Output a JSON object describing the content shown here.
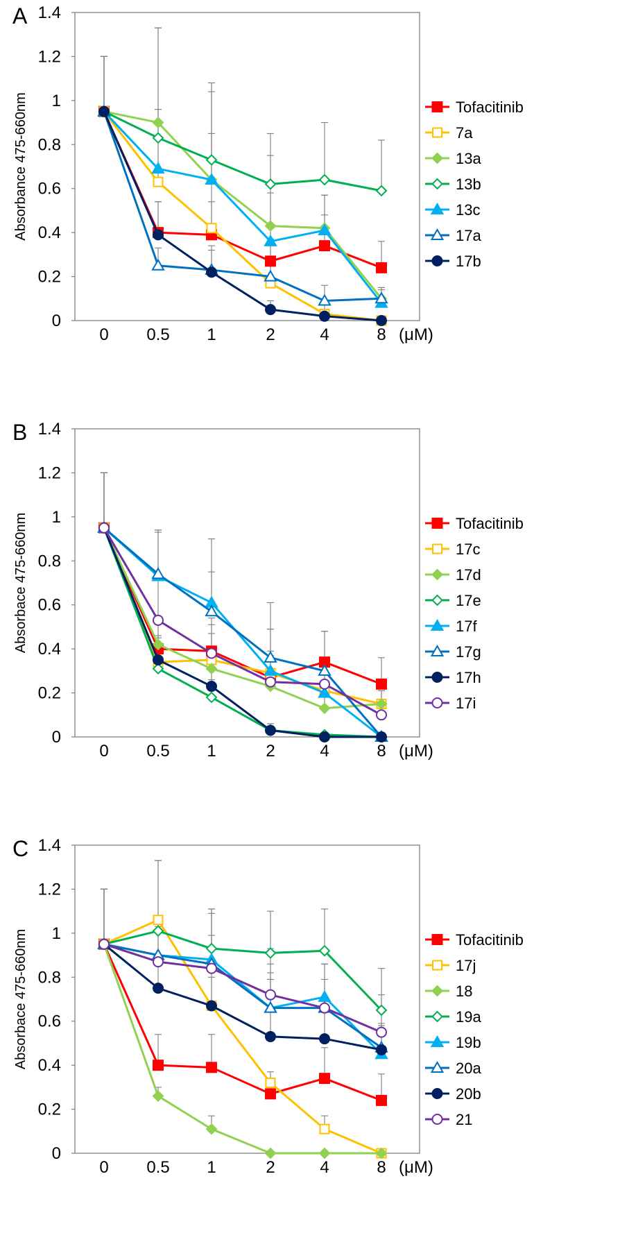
{
  "chart_data": [
    {
      "type": "line",
      "panel_label": "A",
      "ylabel": "Absorbance  475-660nm",
      "unit_label": "(μM)",
      "ylim": [
        0,
        1.4
      ],
      "yticks": [
        "0",
        "0.2",
        "0.4",
        "0.6",
        "0.8",
        "1",
        "1.2",
        "1.4"
      ],
      "categories": [
        "0",
        "0.5",
        "1",
        "2",
        "4",
        "8"
      ],
      "series": [
        {
          "name": "Tofacitinib",
          "color": "#ff0000",
          "marker": "square",
          "filled": true,
          "values": [
            0.95,
            0.4,
            0.39,
            0.27,
            0.34,
            0.24
          ],
          "err": [
            0.25,
            0.14,
            0.15,
            0.1,
            0.14,
            0.12
          ]
        },
        {
          "name": "7a",
          "color": "#ffc000",
          "marker": "square",
          "filled": false,
          "values": [
            0.95,
            0.63,
            0.42,
            0.17,
            0.03,
            0.0
          ],
          "err": [
            0.25,
            0.33,
            0.43,
            0.2,
            0.05,
            0.02
          ]
        },
        {
          "name": "13a",
          "color": "#92d050",
          "marker": "diamond",
          "filled": true,
          "values": [
            0.95,
            0.9,
            0.64,
            0.43,
            0.42,
            0.1
          ],
          "err": [
            0.25,
            0.43,
            0.44,
            0.32,
            0.15,
            0.05
          ]
        },
        {
          "name": "13b",
          "color": "#00b050",
          "marker": "diamond",
          "filled": false,
          "values": [
            0.95,
            0.83,
            0.73,
            0.62,
            0.64,
            0.59
          ],
          "err": [
            0.25,
            0.5,
            0.35,
            0.23,
            0.26,
            0.23
          ]
        },
        {
          "name": "13c",
          "color": "#00b0f0",
          "marker": "triangle",
          "filled": true,
          "values": [
            0.95,
            0.69,
            0.64,
            0.36,
            0.41,
            0.08
          ],
          "err": [
            0.25,
            0.27,
            0.4,
            0.22,
            0.16,
            0.06
          ]
        },
        {
          "name": "17a",
          "color": "#0070c0",
          "marker": "triangle",
          "filled": false,
          "values": [
            0.95,
            0.25,
            0.23,
            0.2,
            0.09,
            0.1
          ],
          "err": [
            0.25,
            0.08,
            0.11,
            0.05,
            0.07,
            0.05
          ]
        },
        {
          "name": "17b",
          "color": "#002060",
          "marker": "circle",
          "filled": true,
          "values": [
            0.95,
            0.39,
            0.22,
            0.05,
            0.02,
            0.0
          ],
          "err": [
            0.25,
            0.15,
            0.1,
            0.04,
            0.03,
            0.02
          ]
        }
      ]
    },
    {
      "type": "line",
      "panel_label": "B",
      "ylabel": "Absorbace 475-660nm",
      "unit_label": "(μM)",
      "ylim": [
        0,
        1.4
      ],
      "yticks": [
        "0",
        "0.2",
        "0.4",
        "0.6",
        "0.8",
        "1",
        "1.2",
        "1.4"
      ],
      "categories": [
        "0",
        "0.5",
        "1",
        "2",
        "4",
        "8"
      ],
      "series": [
        {
          "name": "Tofacitinib",
          "color": "#ff0000",
          "marker": "square",
          "filled": true,
          "values": [
            0.95,
            0.4,
            0.39,
            0.27,
            0.34,
            0.24
          ],
          "err": [
            0.25,
            0.14,
            0.15,
            0.1,
            0.14,
            0.12
          ]
        },
        {
          "name": "17c",
          "color": "#ffc000",
          "marker": "square",
          "filled": false,
          "values": [
            0.95,
            0.34,
            0.35,
            0.29,
            0.21,
            0.15
          ],
          "err": [
            0.25,
            0.12,
            0.12,
            0.1,
            0.08,
            0.06
          ]
        },
        {
          "name": "17d",
          "color": "#92d050",
          "marker": "diamond",
          "filled": true,
          "values": [
            0.95,
            0.42,
            0.31,
            0.23,
            0.13,
            0.15
          ],
          "err": [
            0.25,
            0.12,
            0.1,
            0.08,
            0.06,
            0.06
          ]
        },
        {
          "name": "17e",
          "color": "#00b050",
          "marker": "diamond",
          "filled": false,
          "values": [
            0.95,
            0.31,
            0.18,
            0.03,
            0.01,
            0.0
          ],
          "err": [
            0.25,
            0.1,
            0.08,
            0.03,
            0.01,
            0.01
          ]
        },
        {
          "name": "17f",
          "color": "#00b0f0",
          "marker": "triangle",
          "filled": true,
          "values": [
            0.95,
            0.73,
            0.61,
            0.3,
            0.2,
            0.0
          ],
          "err": [
            0.25,
            0.21,
            0.29,
            0.19,
            0.12,
            0.02
          ]
        },
        {
          "name": "17g",
          "color": "#0070c0",
          "marker": "triangle",
          "filled": false,
          "values": [
            0.95,
            0.74,
            0.57,
            0.36,
            0.3,
            0.0
          ],
          "err": [
            0.25,
            0.2,
            0.18,
            0.25,
            0.18,
            0.02
          ]
        },
        {
          "name": "17h",
          "color": "#002060",
          "marker": "circle",
          "filled": true,
          "values": [
            0.95,
            0.35,
            0.23,
            0.03,
            0.0,
            0.0
          ],
          "err": [
            0.25,
            0.1,
            0.08,
            0.03,
            0.01,
            0.01
          ]
        },
        {
          "name": "17i",
          "color": "#7030a0",
          "marker": "circle",
          "filled": false,
          "values": [
            0.95,
            0.53,
            0.38,
            0.25,
            0.24,
            0.1
          ],
          "err": [
            0.25,
            0.4,
            0.13,
            0.24,
            0.12,
            0.06
          ]
        }
      ]
    },
    {
      "type": "line",
      "panel_label": "C",
      "ylabel": "Absorbace 475-660nm",
      "unit_label": "(μM)",
      "ylim": [
        0,
        1.4
      ],
      "yticks": [
        "0",
        "0.2",
        "0.4",
        "0.6",
        "0.8",
        "1",
        "1.2",
        "1.4"
      ],
      "categories": [
        "0",
        "0.5",
        "1",
        "2",
        "4",
        "8"
      ],
      "series": [
        {
          "name": "Tofacitinib",
          "color": "#ff0000",
          "marker": "square",
          "filled": true,
          "values": [
            0.95,
            0.4,
            0.39,
            0.27,
            0.34,
            0.24
          ],
          "err": [
            0.25,
            0.14,
            0.15,
            0.1,
            0.14,
            0.12
          ]
        },
        {
          "name": "17j",
          "color": "#ffc000",
          "marker": "square",
          "filled": false,
          "values": [
            0.95,
            1.06,
            0.67,
            0.32,
            0.11,
            0.0
          ],
          "err": [
            0.25,
            0.27,
            0.44,
            0.02,
            0.06,
            0.02
          ]
        },
        {
          "name": "18",
          "color": "#92d050",
          "marker": "diamond",
          "filled": true,
          "values": [
            0.95,
            0.26,
            0.11,
            0.0,
            0.0,
            0.0
          ],
          "err": [
            0.25,
            0.04,
            0.06,
            0.01,
            0.01,
            0.01
          ]
        },
        {
          "name": "19a",
          "color": "#00b050",
          "marker": "diamond",
          "filled": false,
          "values": [
            0.95,
            1.01,
            0.93,
            0.91,
            0.92,
            0.65
          ],
          "err": [
            0.25,
            0.32,
            0.18,
            0.19,
            0.19,
            0.19
          ]
        },
        {
          "name": "19b",
          "color": "#00b0f0",
          "marker": "triangle",
          "filled": true,
          "values": [
            0.95,
            0.9,
            0.88,
            0.66,
            0.71,
            0.45
          ],
          "err": [
            0.25,
            0.16,
            0.21,
            0.27,
            0.15,
            0.1
          ]
        },
        {
          "name": "20a",
          "color": "#0070c0",
          "marker": "triangle",
          "filled": false,
          "values": [
            0.95,
            0.9,
            0.86,
            0.66,
            0.66,
            0.48
          ],
          "err": [
            0.25,
            0.16,
            0.25,
            0.16,
            0.2,
            0.1
          ]
        },
        {
          "name": "20b",
          "color": "#002060",
          "marker": "circle",
          "filled": true,
          "values": [
            0.95,
            0.75,
            0.67,
            0.53,
            0.52,
            0.47
          ],
          "err": [
            0.25,
            0.11,
            0.13,
            0.26,
            0.15,
            0.12
          ]
        },
        {
          "name": "21",
          "color": "#7030a0",
          "marker": "circle",
          "filled": false,
          "values": [
            0.95,
            0.87,
            0.84,
            0.72,
            0.66,
            0.55
          ],
          "err": [
            0.25,
            0.16,
            0.15,
            0.14,
            0.13,
            0.17
          ]
        }
      ]
    }
  ]
}
